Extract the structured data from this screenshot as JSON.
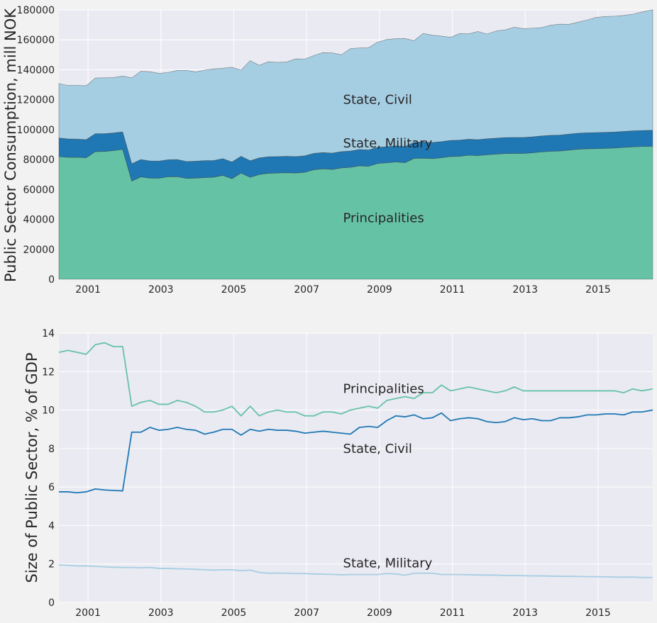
{
  "chart_data": [
    {
      "type": "area",
      "stacked": true,
      "title": "",
      "xlabel": "",
      "ylabel": "Public Sector Consumption, mill NOK",
      "xlim": [
        2000.2,
        2016.5
      ],
      "ylim": [
        0,
        180000
      ],
      "yticks": [
        0,
        20000,
        40000,
        60000,
        80000,
        100000,
        120000,
        140000,
        160000,
        180000
      ],
      "ytick_labels": [
        "0",
        "20000",
        "40000",
        "60000",
        "80000",
        "100000",
        "120000",
        "140000",
        "160000",
        "180000"
      ],
      "xticks": [
        2001,
        2003,
        2005,
        2007,
        2009,
        2011,
        2013,
        2015
      ],
      "xtick_labels": [
        "2001",
        "2003",
        "2005",
        "2007",
        "2009",
        "2011",
        "2013",
        "2015"
      ],
      "grid": true,
      "annotations": [
        {
          "text": "State, Civil",
          "x": 2008.0,
          "y": 120000
        },
        {
          "text": "State, Military",
          "x": 2008.0,
          "y": 91000
        },
        {
          "text": "Principalities",
          "x": 2008.0,
          "y": 41000
        }
      ],
      "x": [
        2000.2,
        2000.45,
        2000.7,
        2000.95,
        2001.2,
        2001.45,
        2001.7,
        2001.95,
        2002.2,
        2002.45,
        2002.7,
        2002.95,
        2003.2,
        2003.45,
        2003.7,
        2003.95,
        2004.2,
        2004.45,
        2004.7,
        2004.95,
        2005.2,
        2005.45,
        2005.7,
        2005.95,
        2006.2,
        2006.45,
        2006.7,
        2006.95,
        2007.2,
        2007.45,
        2007.7,
        2007.95,
        2008.2,
        2008.45,
        2008.7,
        2008.95,
        2009.2,
        2009.45,
        2009.7,
        2009.95,
        2010.2,
        2010.45,
        2010.7,
        2010.95,
        2011.2,
        2011.45,
        2011.7,
        2011.95,
        2012.2,
        2012.45,
        2012.7,
        2012.95,
        2013.2,
        2013.45,
        2013.7,
        2013.95,
        2014.2,
        2014.45,
        2014.7,
        2014.95,
        2015.2,
        2015.45,
        2015.7,
        2015.95,
        2016.2,
        2016.5
      ],
      "series": [
        {
          "name": "Principalities",
          "color": "#66c2a5",
          "values": [
            82000,
            81500,
            81500,
            81200,
            85300,
            85400,
            86000,
            86800,
            65600,
            68400,
            67600,
            67500,
            68500,
            68600,
            67400,
            67600,
            68000,
            68200,
            69400,
            67200,
            71000,
            68100,
            70000,
            70800,
            71000,
            71200,
            71000,
            71500,
            73200,
            73800,
            73400,
            74400,
            74800,
            75800,
            75500,
            77400,
            77800,
            78400,
            77900,
            80800,
            80900,
            80600,
            81200,
            82000,
            82200,
            82900,
            82600,
            83200,
            83600,
            84000,
            84100,
            84100,
            84500,
            85100,
            85500,
            85700,
            86300,
            86900,
            87200,
            87300,
            87500,
            87700,
            88100,
            88500,
            88700,
            88900
          ]
        },
        {
          "name": "State, Military",
          "color": "#1f78b4",
          "values": [
            12400,
            12300,
            12200,
            12100,
            12000,
            11900,
            11800,
            11700,
            11600,
            11600,
            11500,
            11500,
            11400,
            11400,
            11300,
            11300,
            11300,
            11200,
            11200,
            11200,
            11200,
            11100,
            11100,
            11100,
            11000,
            11000,
            11000,
            11000,
            11000,
            10900,
            10900,
            10900,
            10900,
            10900,
            10900,
            10800,
            10800,
            10800,
            10800,
            10800,
            10800,
            10800,
            10800,
            10800,
            10800,
            10700,
            10700,
            10700,
            10700,
            10700,
            10700,
            10700,
            10700,
            10700,
            10700,
            10700,
            10700,
            10700,
            10700,
            10700,
            10700,
            10700,
            10700,
            10700,
            10700,
            10700
          ]
        },
        {
          "name": "State, Civil",
          "color": "#a6cee3",
          "values": [
            36400,
            35700,
            35800,
            36000,
            37200,
            37300,
            37000,
            37300,
            57400,
            59000,
            59600,
            58600,
            58300,
            59600,
            60900,
            59700,
            60400,
            61200,
            60400,
            63300,
            57500,
            66900,
            61900,
            63500,
            62900,
            63000,
            65300,
            64700,
            65300,
            66800,
            67000,
            64700,
            68400,
            67900,
            68300,
            70300,
            71600,
            71600,
            72200,
            67900,
            72600,
            71700,
            70500,
            68900,
            71200,
            70400,
            72300,
            70000,
            71600,
            72000,
            73600,
            72700,
            72600,
            72400,
            73600,
            74100,
            73400,
            74200,
            75400,
            77000,
            77400,
            77400,
            77500,
            77900,
            79200,
            80500
          ]
        }
      ]
    },
    {
      "type": "line",
      "title": "",
      "xlabel": "",
      "ylabel": "Size of Public Sector, % of GDP",
      "xlim": [
        2000.2,
        2016.5
      ],
      "ylim": [
        0,
        14
      ],
      "yticks": [
        0,
        2,
        4,
        6,
        8,
        10,
        12,
        14
      ],
      "ytick_labels": [
        "0",
        "2",
        "4",
        "6",
        "8",
        "10",
        "12",
        "14"
      ],
      "xticks": [
        2001,
        2003,
        2005,
        2007,
        2009,
        2011,
        2013,
        2015
      ],
      "xtick_labels": [
        "2001",
        "2003",
        "2005",
        "2007",
        "2009",
        "2011",
        "2013",
        "2015"
      ],
      "grid": true,
      "annotations": [
        {
          "text": "Principalities",
          "x": 2008.0,
          "y": 11.1
        },
        {
          "text": "State, Civil",
          "x": 2008.0,
          "y": 8.0
        },
        {
          "text": "State, Military",
          "x": 2008.0,
          "y": 2.05
        }
      ],
      "x": [
        2000.2,
        2000.45,
        2000.7,
        2000.95,
        2001.2,
        2001.45,
        2001.7,
        2001.95,
        2002.2,
        2002.45,
        2002.7,
        2002.95,
        2003.2,
        2003.45,
        2003.7,
        2003.95,
        2004.2,
        2004.45,
        2004.7,
        2004.95,
        2005.2,
        2005.45,
        2005.7,
        2005.95,
        2006.2,
        2006.45,
        2006.7,
        2006.95,
        2007.2,
        2007.45,
        2007.7,
        2007.95,
        2008.2,
        2008.45,
        2008.7,
        2008.95,
        2009.2,
        2009.45,
        2009.7,
        2009.95,
        2010.2,
        2010.45,
        2010.7,
        2010.95,
        2011.2,
        2011.45,
        2011.7,
        2011.95,
        2012.2,
        2012.45,
        2012.7,
        2012.95,
        2013.2,
        2013.45,
        2013.7,
        2013.95,
        2014.2,
        2014.45,
        2014.7,
        2014.95,
        2015.2,
        2015.45,
        2015.7,
        2015.95,
        2016.2,
        2016.5
      ],
      "series": [
        {
          "name": "Principalities",
          "color": "#66c2a5",
          "values": [
            13.0,
            13.1,
            13.0,
            12.9,
            13.4,
            13.5,
            13.3,
            13.3,
            10.2,
            10.4,
            10.5,
            10.3,
            10.3,
            10.5,
            10.4,
            10.2,
            9.9,
            9.9,
            10.0,
            10.2,
            9.7,
            10.2,
            9.7,
            9.9,
            10.0,
            9.9,
            9.9,
            9.7,
            9.7,
            9.9,
            9.9,
            9.8,
            10.0,
            10.1,
            10.2,
            10.1,
            10.5,
            10.6,
            10.7,
            10.6,
            10.9,
            10.9,
            11.3,
            11.0,
            11.1,
            11.2,
            11.1,
            11.0,
            10.9,
            11.0,
            11.2,
            11.0,
            11.0,
            11.0,
            11.0,
            11.0,
            11.0,
            11.0,
            11.0,
            11.0,
            11.0,
            11.0,
            10.9,
            11.1,
            11.0,
            11.1
          ]
        },
        {
          "name": "State, Civil",
          "color": "#1f78b4",
          "values": [
            5.75,
            5.75,
            5.7,
            5.75,
            5.9,
            5.85,
            5.82,
            5.8,
            8.85,
            8.85,
            9.1,
            8.95,
            9.0,
            9.1,
            9.0,
            8.95,
            8.75,
            8.85,
            9.0,
            9.0,
            8.7,
            9.0,
            8.9,
            9.0,
            8.95,
            8.95,
            8.9,
            8.8,
            8.85,
            8.9,
            8.85,
            8.8,
            8.75,
            9.1,
            9.15,
            9.1,
            9.45,
            9.7,
            9.65,
            9.75,
            9.55,
            9.6,
            9.85,
            9.45,
            9.55,
            9.6,
            9.55,
            9.4,
            9.35,
            9.4,
            9.6,
            9.5,
            9.55,
            9.45,
            9.45,
            9.6,
            9.6,
            9.65,
            9.75,
            9.75,
            9.8,
            9.8,
            9.75,
            9.9,
            9.9,
            10.0
          ]
        },
        {
          "name": "State, Military",
          "color": "#a6cee3",
          "values": [
            1.95,
            1.93,
            1.9,
            1.9,
            1.88,
            1.85,
            1.83,
            1.82,
            1.82,
            1.8,
            1.82,
            1.77,
            1.77,
            1.75,
            1.74,
            1.72,
            1.7,
            1.68,
            1.7,
            1.7,
            1.65,
            1.68,
            1.56,
            1.52,
            1.53,
            1.52,
            1.5,
            1.5,
            1.48,
            1.47,
            1.46,
            1.44,
            1.45,
            1.45,
            1.45,
            1.45,
            1.5,
            1.48,
            1.42,
            1.52,
            1.52,
            1.52,
            1.45,
            1.45,
            1.45,
            1.44,
            1.43,
            1.42,
            1.42,
            1.4,
            1.4,
            1.39,
            1.38,
            1.38,
            1.37,
            1.36,
            1.36,
            1.35,
            1.34,
            1.34,
            1.33,
            1.32,
            1.31,
            1.32,
            1.3,
            1.3
          ]
        }
      ]
    }
  ]
}
